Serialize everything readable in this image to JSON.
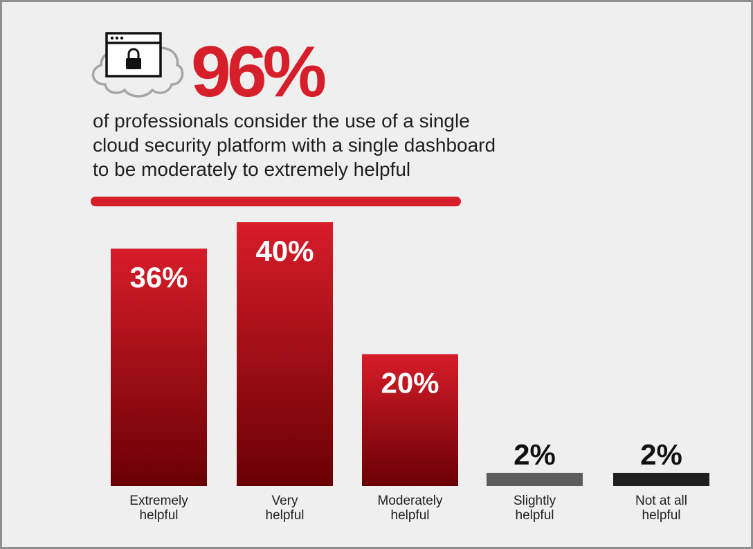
{
  "header": {
    "stat": "96%",
    "subtitle": "of professionals consider the use of a single\ncloud security platform with a single dashboard\nto be moderately to extremely helpful",
    "icon": "cloud-lock-icon",
    "accent_color": "#d61f2a"
  },
  "chart_data": {
    "type": "bar",
    "categories": [
      [
        "Extremely",
        "helpful"
      ],
      [
        "Very",
        "helpful"
      ],
      [
        "Moderately",
        "helpful"
      ],
      [
        "Slightly",
        "helpful"
      ],
      [
        "Not at all",
        "helpful"
      ]
    ],
    "values": [
      36,
      40,
      20,
      2,
      2
    ],
    "data_labels": [
      "36%",
      "40%",
      "20%",
      "2%",
      "2%"
    ],
    "bar_colors": [
      "#d01c27",
      "#d01c27",
      "#d01c27",
      "#5c5c5c",
      "#1f1f1f"
    ],
    "ylim": [
      0,
      40
    ],
    "grid": false,
    "title": "",
    "xlabel": "",
    "ylabel": ""
  }
}
